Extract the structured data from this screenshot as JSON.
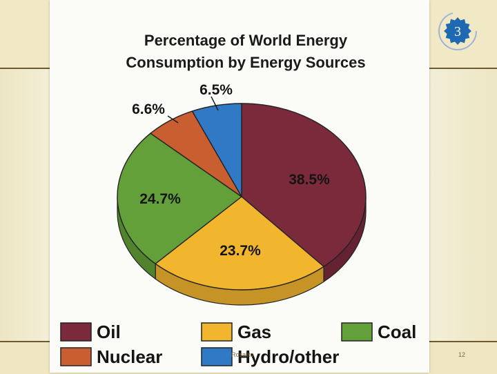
{
  "slide": {
    "badge_number": "3",
    "footer_text": "Rosalito",
    "page_number": "12"
  },
  "colors": {
    "oil": "#7b2a3c",
    "gas": "#f2b52e",
    "coal": "#63a039",
    "nuclear": "#c95f31",
    "hydro": "#2f79c5",
    "accent_blue": "#1f69b3"
  },
  "chart_data": {
    "type": "pie",
    "title": "Percentage of World Energy Consumption by Energy Sources",
    "title_lines": [
      "Percentage of World Energy",
      "Consumption by Energy Sources"
    ],
    "categories": [
      "Oil",
      "Gas",
      "Coal",
      "Nuclear",
      "Hydro/other"
    ],
    "values": [
      38.5,
      23.7,
      24.7,
      6.6,
      6.5
    ],
    "labels": [
      "38.5%",
      "23.7%",
      "24.7%",
      "6.6%",
      "6.5%"
    ],
    "legend_position": "bottom",
    "style": "3d"
  }
}
